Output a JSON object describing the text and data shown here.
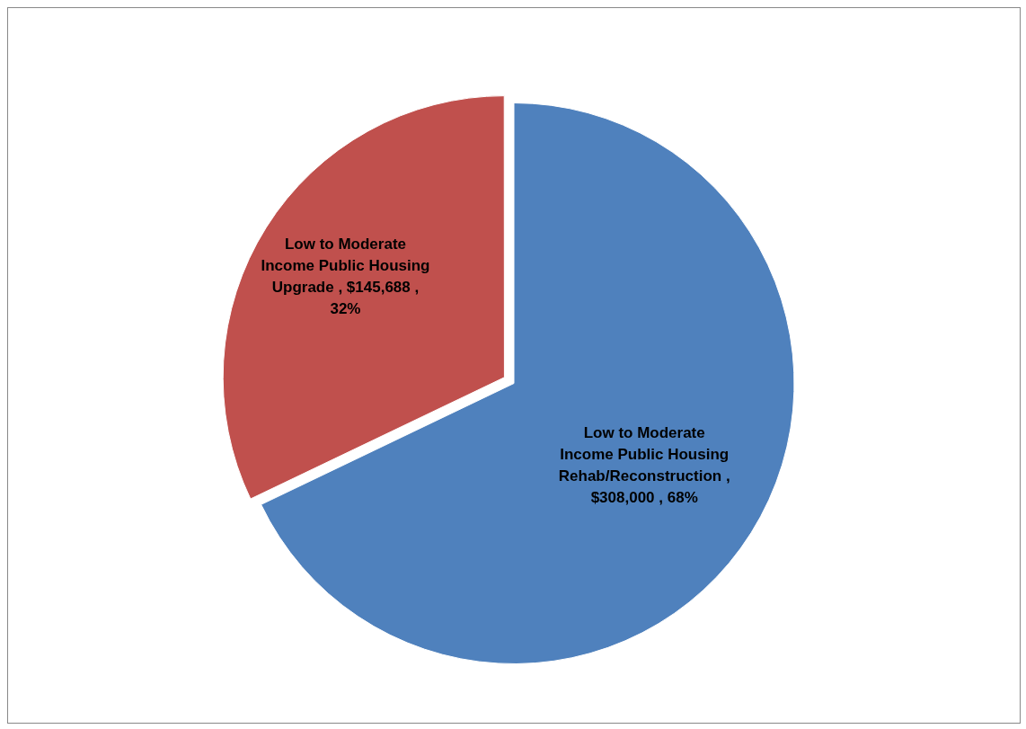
{
  "chart_data": {
    "type": "pie",
    "categories": [
      "Low to Moderate Income Public Housing Rehab/Reconstruction",
      "Low to Moderate Income Public Housing Upgrade"
    ],
    "values": [
      308000,
      145688
    ],
    "colors": [
      "#4f81bd",
      "#c0504d"
    ],
    "value_labels": [
      ", $308,000 , 68%",
      ", $145,688 , 32%"
    ],
    "legend": false
  }
}
